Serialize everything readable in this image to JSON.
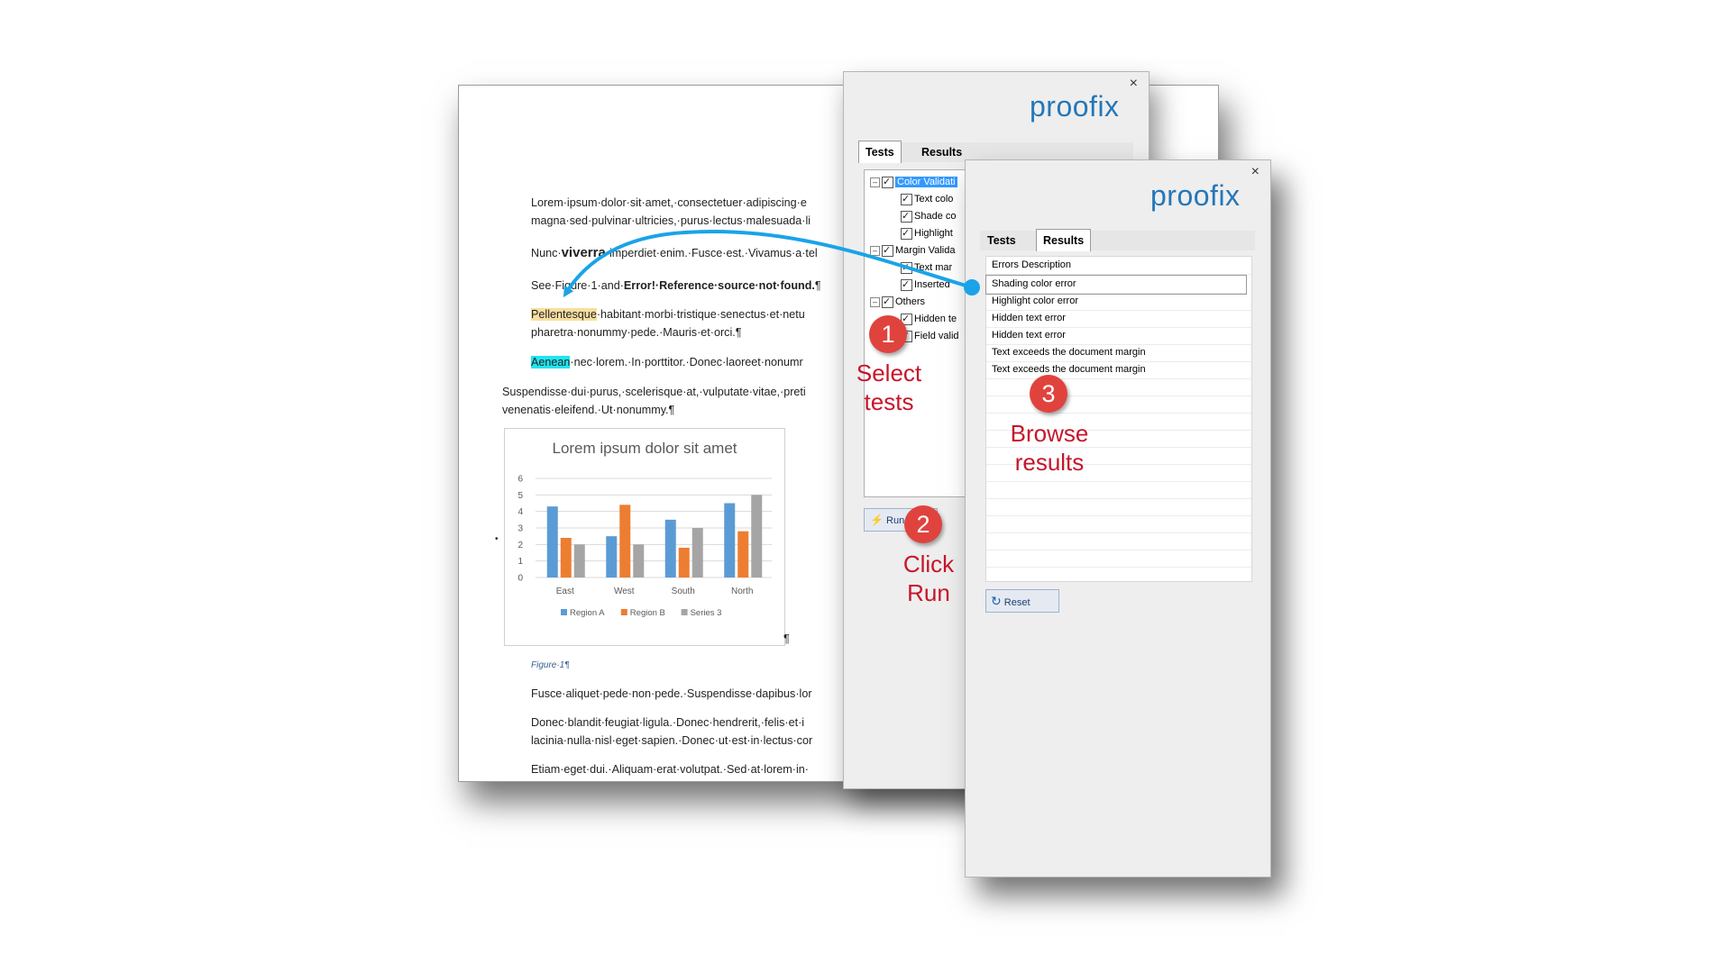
{
  "document": {
    "paragraphs": [
      "Lorem·ipsum·dolor·sit·amet,·consectetuer·adipiscing·e",
      "magna·sed·pulvinar·ultricies,·purus·lectus·malesuada·li",
      "Nunc·",
      "viverra",
      "·imperdiet·enim.·Fusce·est.·Vivamus·a·tel",
      "See·Figure·1·and·",
      "Error!·Reference·source·not·found.",
      "¶",
      "Pellentesque",
      "·habitant·morbi·tristique·senectus·et·netu",
      "pharetra·nonummy·pede.·Mauris·et·orci.¶",
      "Aenean",
      "·nec·lorem.·In·porttitor.·Donec·laoreet·nonumr",
      "Suspendisse·dui·purus,·scelerisque·at,·vulputate·vitae,·preti",
      "venenatis·eleifend.·Ut·nonummy.¶",
      "Fusce·aliquet·pede·non·pede.·Suspendisse·dapibus·lor",
      "Donec·blandit·feugiat·ligula.·Donec·hendrerit,·felis·et·i",
      "lacinia·nulla·nisl·eget·sapien.·Donec·ut·est·in·lectus·cor",
      "Etiam·eget·dui.·Aliquam·erat·volutpat.·Sed·at·lorem·in·"
    ],
    "figure_caption": "Figure·1¶",
    "pilcrow": "¶",
    "bullet": "•"
  },
  "chart_data": {
    "type": "bar",
    "title": "Lorem ipsum dolor sit amet",
    "categories": [
      "East",
      "West",
      "South",
      "North"
    ],
    "series": [
      {
        "name": "Region A",
        "values": [
          4.3,
          2.5,
          3.5,
          4.5
        ],
        "color": "#5b9bd5"
      },
      {
        "name": "Region B",
        "values": [
          2.4,
          4.4,
          1.8,
          2.8
        ],
        "color": "#ed7d31"
      },
      {
        "name": "Series 3",
        "values": [
          2.0,
          2.0,
          3.0,
          5.0
        ],
        "color": "#a5a5a5"
      }
    ],
    "ylim": [
      0,
      6
    ],
    "yticks": [
      "0",
      "1",
      "2",
      "3",
      "4",
      "5",
      "6"
    ],
    "grid": true,
    "legend": "bottom"
  },
  "panel_tests": {
    "close": "×",
    "brand": "proofix",
    "tabs": [
      "Tests",
      "Results"
    ],
    "tree": [
      {
        "label": "Color Validati",
        "level": 0,
        "selected": true
      },
      {
        "label": "Text colo",
        "level": 1
      },
      {
        "label": "Shade co",
        "level": 1
      },
      {
        "label": "Highlight",
        "level": 1
      },
      {
        "label": "Margin Valida",
        "level": 0
      },
      {
        "label": "Text mar",
        "level": 1
      },
      {
        "label": "Inserted",
        "level": 1
      },
      {
        "label": "Others",
        "level": 0
      },
      {
        "label": "Hidden te",
        "level": 1
      },
      {
        "label": "Field valid",
        "level": 1
      }
    ],
    "run_label": "Run",
    "run_icon": "lightning-icon"
  },
  "panel_results": {
    "close": "×",
    "brand": "proofix",
    "tabs": [
      "Tests",
      "Results"
    ],
    "header": "Errors Description",
    "rows": [
      "Shading color error",
      "Highlight color error",
      "Hidden text error",
      "Hidden text error",
      "Text exceeds the document margin",
      "Text exceeds the document margin"
    ],
    "reset_label": "Reset",
    "reset_icon": "refresh-icon"
  },
  "callouts": [
    {
      "num": "1",
      "text_line1": "Select",
      "text_line2": "tests"
    },
    {
      "num": "2",
      "text_line1": "Click",
      "text_line2": "Run"
    },
    {
      "num": "3",
      "text_line1": "Browse",
      "text_line2": "results"
    }
  ],
  "colors": {
    "accent": "#2577b8",
    "callout": "#e0433d",
    "callout_text": "#c8152a",
    "arrow": "#1aa3e8"
  }
}
